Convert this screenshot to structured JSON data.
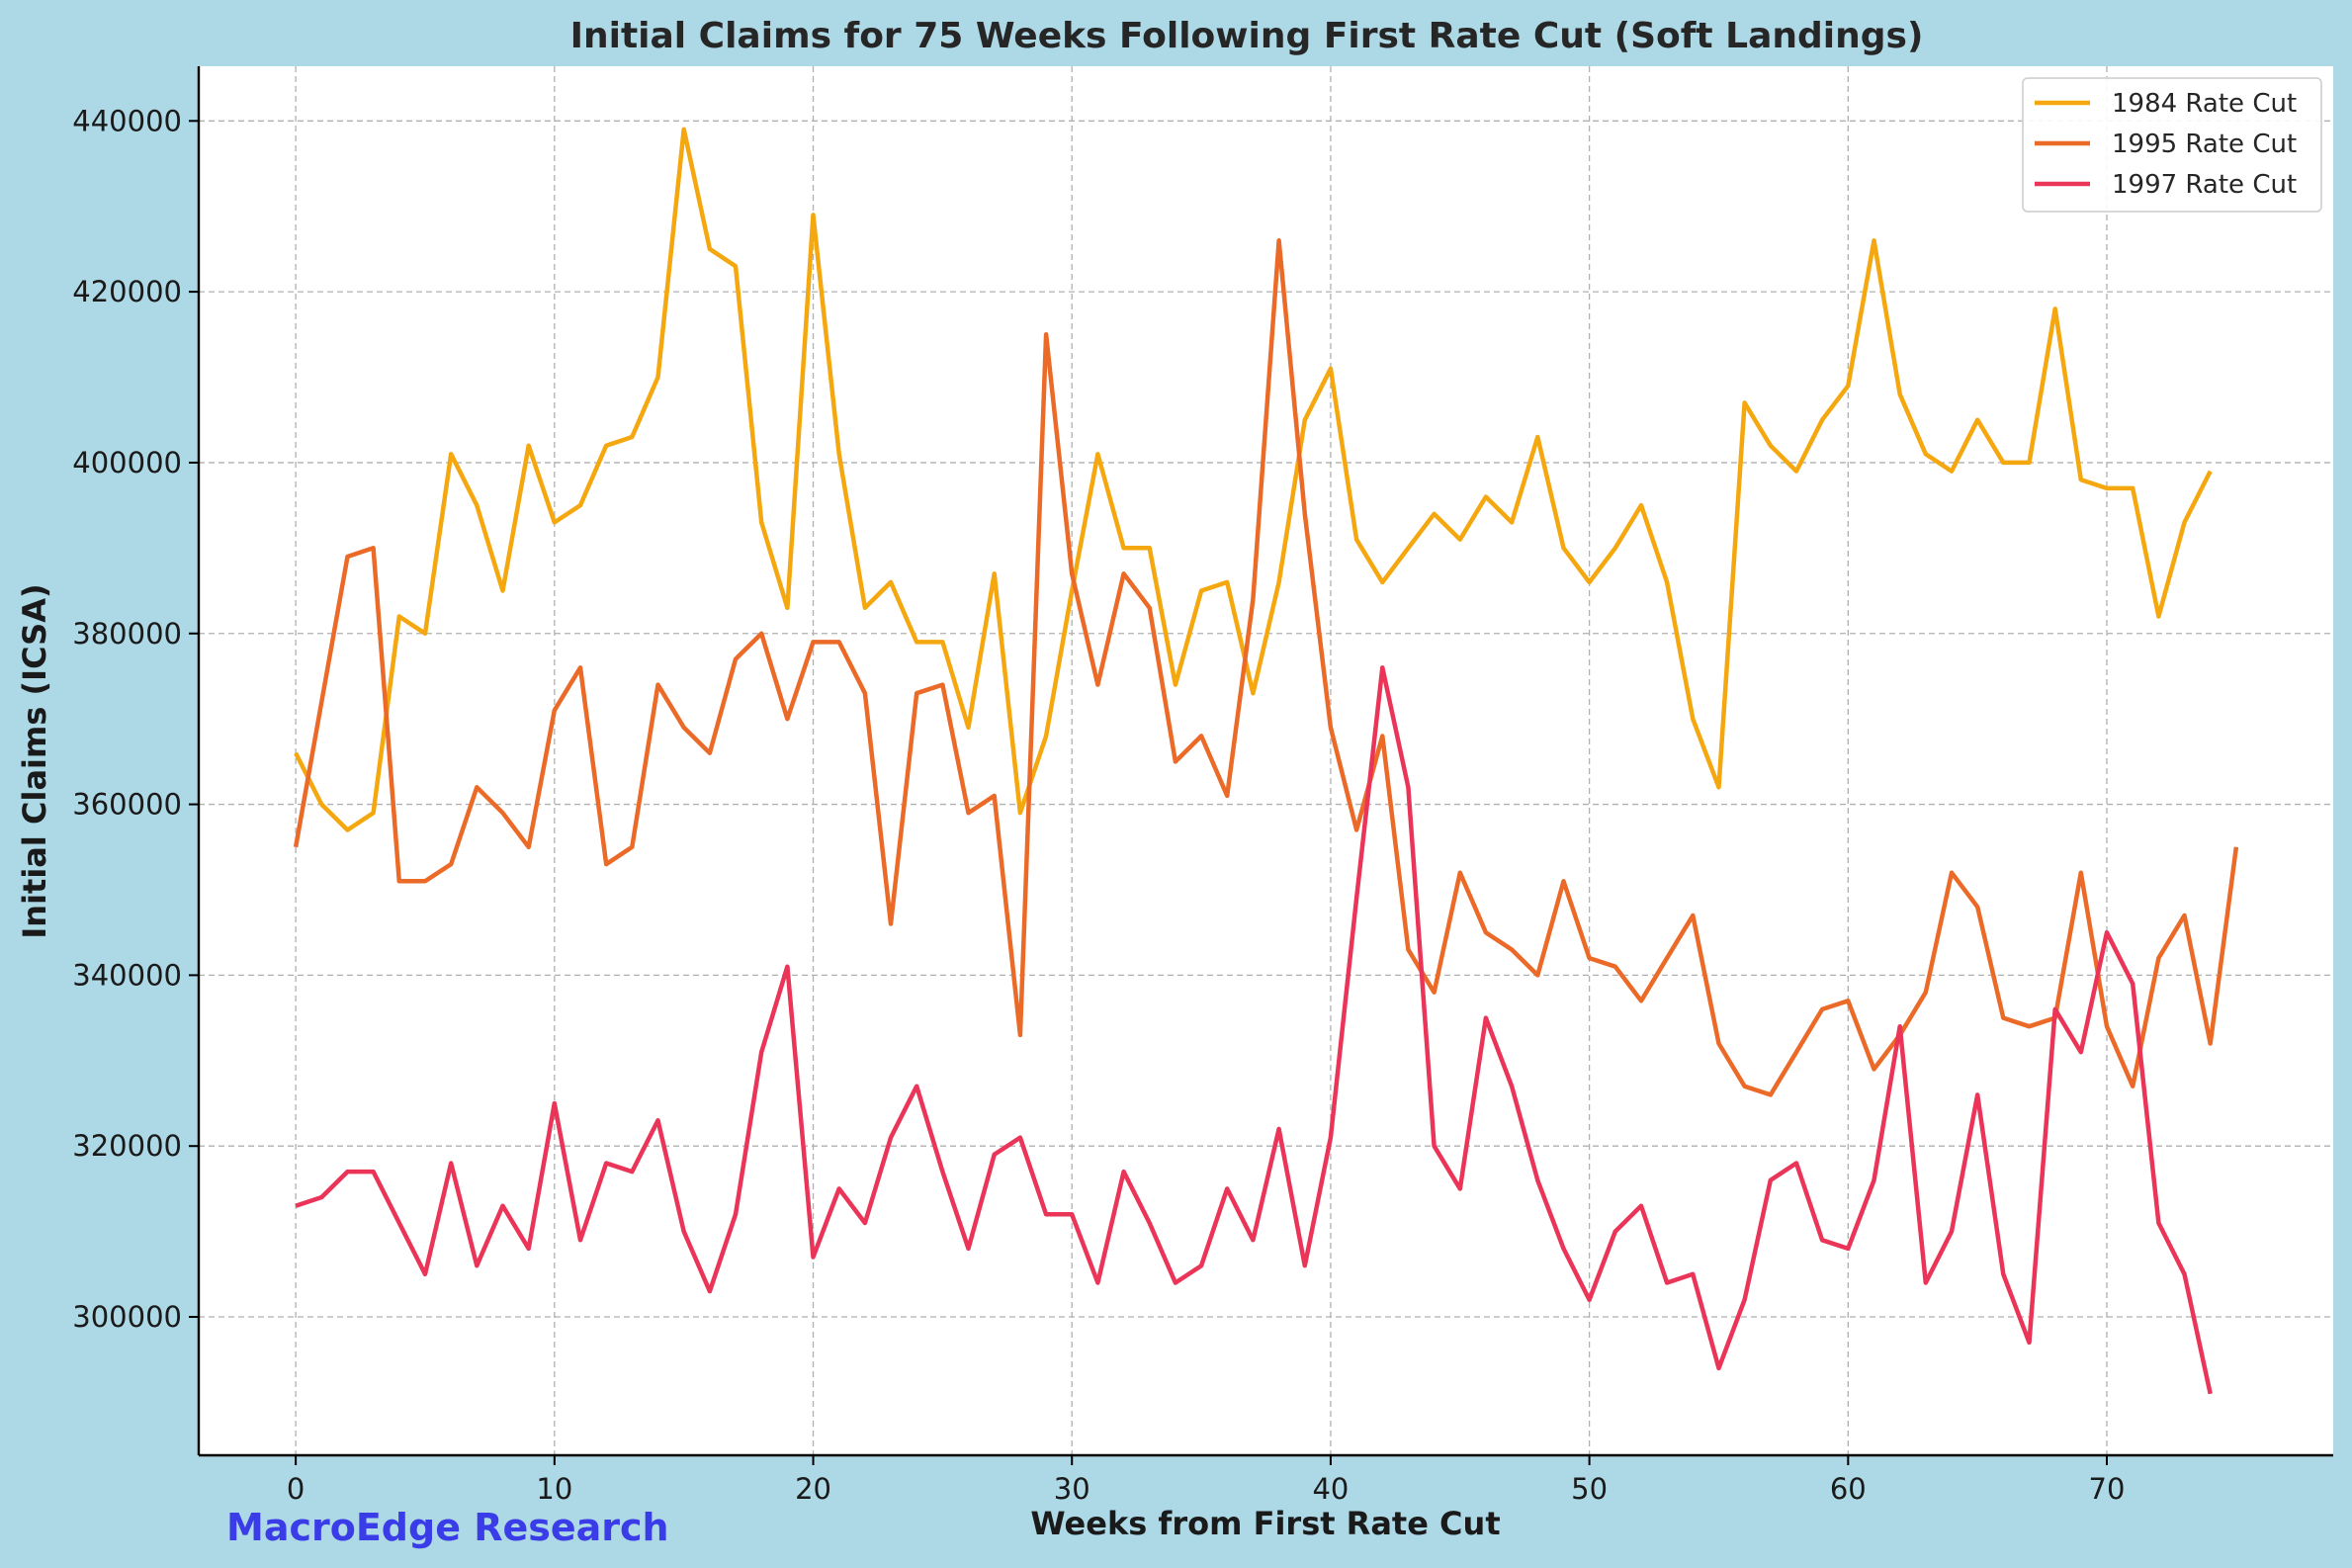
{
  "watermark": "MacroEdge Research",
  "colors": {
    "background": "#add8e6",
    "plot_background": "#ffffff",
    "grid": "#b0b0b0",
    "watermark": "#3a3ce8",
    "series": [
      "#f5a70f",
      "#eb6a28",
      "#ea3458"
    ]
  },
  "chart_data": {
    "type": "line",
    "title": "Initial Claims for 75 Weeks Following First Rate Cut (Soft Landings)",
    "xlabel": "Weeks from First Rate Cut",
    "ylabel": "Initial Claims (ICSA)",
    "xlim": [
      -3.75,
      78.75
    ],
    "ylim": [
      283800,
      446400
    ],
    "xticks": [
      0,
      10,
      20,
      30,
      40,
      50,
      60,
      70
    ],
    "yticks": [
      300000,
      320000,
      340000,
      360000,
      380000,
      400000,
      420000,
      440000
    ],
    "grid": true,
    "legend_position": "top-right",
    "series": [
      {
        "name": "1984 Rate Cut",
        "x_start": 0,
        "values": [
          366000,
          360000,
          357000,
          359000,
          382000,
          380000,
          401000,
          395000,
          385000,
          402000,
          393000,
          395000,
          402000,
          403000,
          410000,
          439000,
          425000,
          423000,
          393000,
          383000,
          429000,
          401000,
          383000,
          386000,
          379000,
          379000,
          369000,
          387000,
          359000,
          368000,
          385000,
          401000,
          390000,
          390000,
          374000,
          385000,
          386000,
          373000,
          386000,
          405000,
          411000,
          391000,
          386000,
          390000,
          394000,
          391000,
          396000,
          393000,
          403000,
          390000,
          386000,
          390000,
          395000,
          386000,
          370000,
          362000,
          407000,
          402000,
          399000,
          405000,
          409000,
          426000,
          408000,
          401000,
          399000,
          405000,
          400000,
          400000,
          418000,
          398000,
          397000,
          397000,
          382000,
          393000,
          399000
        ]
      },
      {
        "name": "1995 Rate Cut",
        "x_start": 0,
        "values": [
          355000,
          372000,
          389000,
          390000,
          351000,
          351000,
          353000,
          362000,
          359000,
          355000,
          371000,
          376000,
          353000,
          355000,
          374000,
          369000,
          366000,
          377000,
          380000,
          370000,
          379000,
          379000,
          373000,
          346000,
          373000,
          374000,
          359000,
          361000,
          333000,
          415000,
          387000,
          374000,
          387000,
          383000,
          365000,
          368000,
          361000,
          384000,
          426000,
          394000,
          369000,
          357000,
          368000,
          343000,
          338000,
          352000,
          345000,
          343000,
          340000,
          351000,
          342000,
          341000,
          337000,
          342000,
          347000,
          332000,
          327000,
          326000,
          331000,
          336000,
          337000,
          329000,
          333000,
          338000,
          352000,
          348000,
          335000,
          334000,
          335000,
          352000,
          334000,
          327000,
          342000,
          347000,
          332000,
          355000
        ]
      },
      {
        "name": "1997 Rate Cut",
        "x_start": 0,
        "values": [
          313000,
          314000,
          317000,
          317000,
          311000,
          305000,
          318000,
          306000,
          313000,
          308000,
          325000,
          309000,
          318000,
          317000,
          323000,
          310000,
          303000,
          312000,
          331000,
          341000,
          307000,
          315000,
          311000,
          321000,
          327000,
          317000,
          308000,
          319000,
          321000,
          312000,
          312000,
          304000,
          317000,
          311000,
          304000,
          306000,
          315000,
          309000,
          322000,
          306000,
          321000,
          349000,
          376000,
          362000,
          320000,
          315000,
          335000,
          327000,
          316000,
          308000,
          302000,
          310000,
          313000,
          304000,
          305000,
          294000,
          302000,
          316000,
          318000,
          309000,
          308000,
          316000,
          334000,
          304000,
          310000,
          326000,
          305000,
          297000,
          336000,
          331000,
          345000,
          339000,
          311000,
          305000,
          291000
        ]
      }
    ]
  }
}
